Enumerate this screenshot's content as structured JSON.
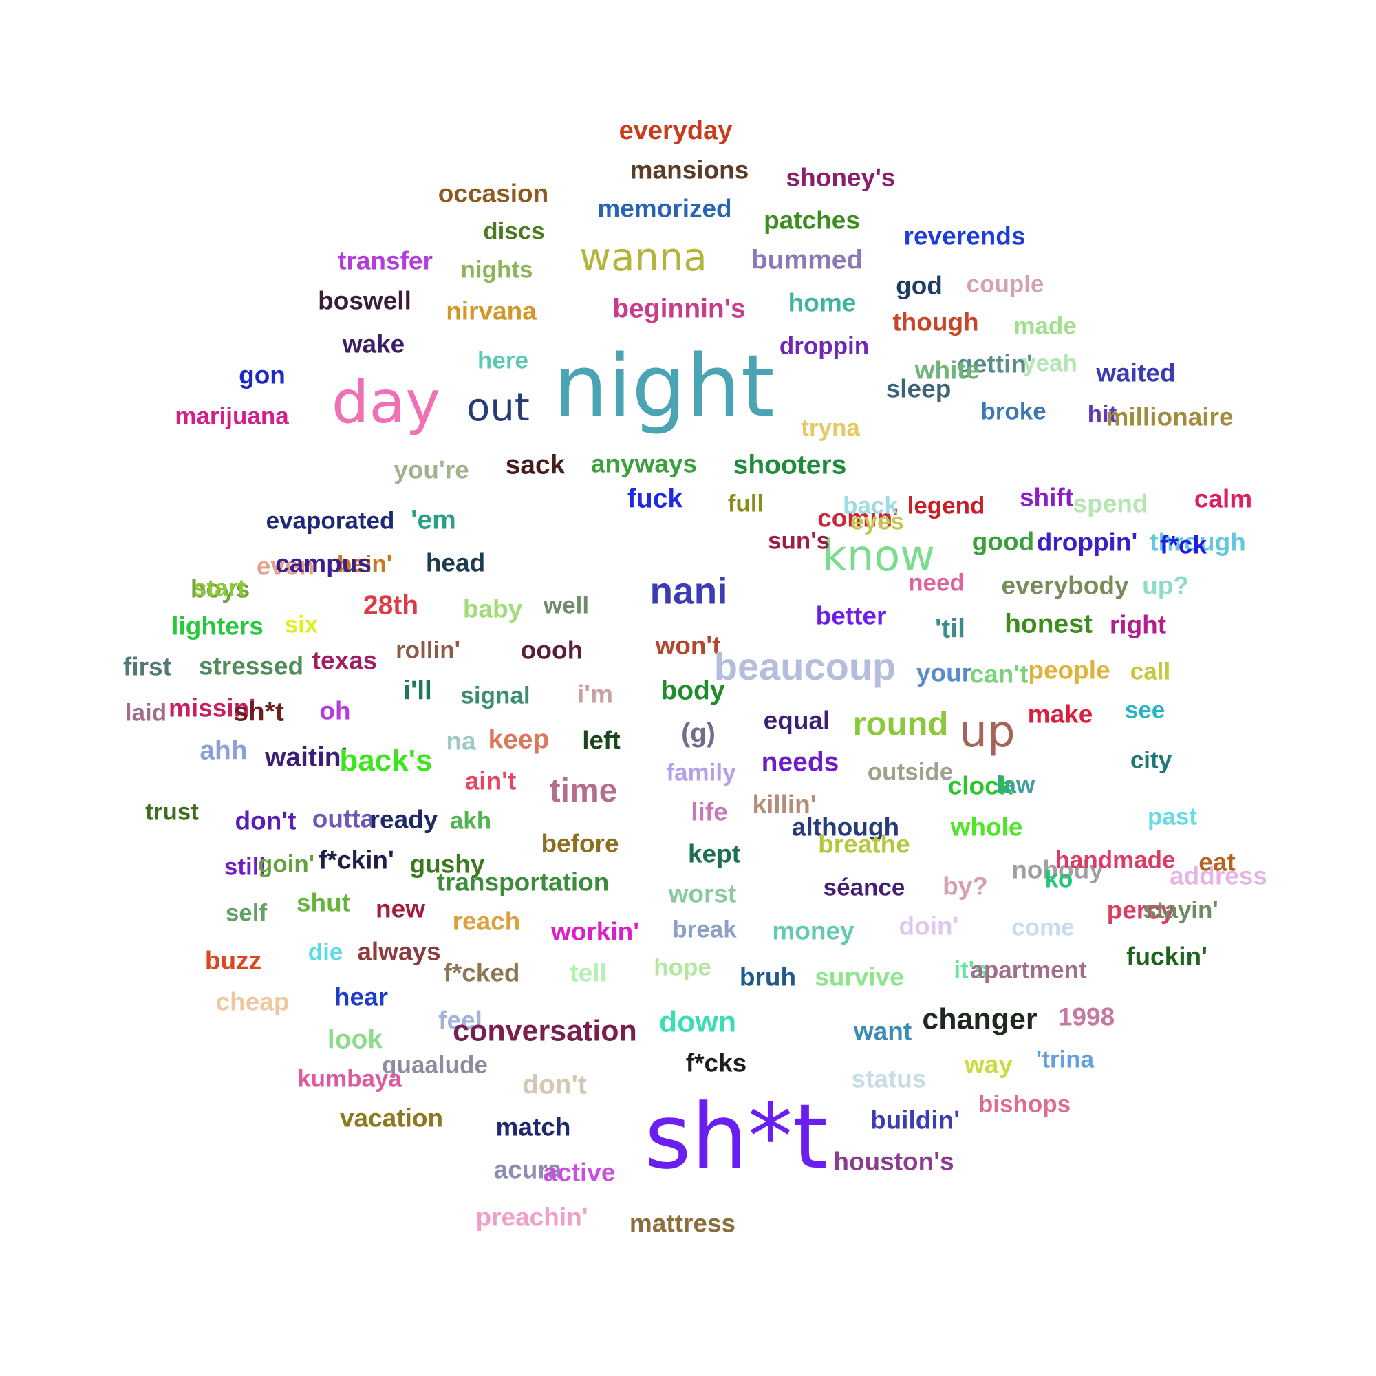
{
  "word_cloud": {
    "words": [
      {
        "text": "night",
        "color": "#4aa4b4"
      },
      {
        "text": "sh*t",
        "color": "#6a1ef0"
      },
      {
        "text": "day",
        "color": "#f070b4"
      },
      {
        "text": "wanna",
        "color": "#b4b43c"
      },
      {
        "text": "know",
        "color": "#7adc8c"
      },
      {
        "text": "out",
        "color": "#283c78"
      },
      {
        "text": "up",
        "color": "#a4645a"
      },
      {
        "text": "everyday",
        "color": "#c83c1e"
      },
      {
        "text": "mansions",
        "color": "#5a3c28"
      },
      {
        "text": "shoney's",
        "color": "#8c1e6e"
      },
      {
        "text": "occasion",
        "color": "#8c5a1e"
      },
      {
        "text": "memorized",
        "color": "#2864b4"
      },
      {
        "text": "patches",
        "color": "#3c8c1e"
      },
      {
        "text": "discs",
        "color": "#4a7a1e"
      },
      {
        "text": "reverends",
        "color": "#1e3cdc"
      },
      {
        "text": "transfer",
        "color": "#b43cdc"
      },
      {
        "text": "nights",
        "color": "#8cb45a"
      },
      {
        "text": "bummed",
        "color": "#8c78b4"
      },
      {
        "text": "god",
        "color": "#1e3c64"
      },
      {
        "text": "couple",
        "color": "#d4a0b4"
      },
      {
        "text": "boswell",
        "color": "#3c1e3c"
      },
      {
        "text": "nirvana",
        "color": "#d49628"
      },
      {
        "text": "beginnin's",
        "color": "#c83c8c"
      },
      {
        "text": "home",
        "color": "#3cb4a0"
      },
      {
        "text": "though",
        "color": "#c84628"
      },
      {
        "text": "made",
        "color": "#a0e08c"
      },
      {
        "text": "gettin'",
        "color": "#5a8c8c"
      },
      {
        "text": "wake",
        "color": "#3c1e64"
      },
      {
        "text": "droppin",
        "color": "#6e28b4"
      },
      {
        "text": "white",
        "color": "#6eb478"
      },
      {
        "text": "yeah",
        "color": "#b4e6b4"
      },
      {
        "text": "waited",
        "color": "#3c3cb4"
      },
      {
        "text": "gon",
        "color": "#1e28c8"
      },
      {
        "text": "here",
        "color": "#5ac8b4"
      },
      {
        "text": "sleep",
        "color": "#3c6478"
      },
      {
        "text": "broke",
        "color": "#3c78b4"
      },
      {
        "text": "hit",
        "color": "#5a3cb4"
      },
      {
        "text": "millionaire",
        "color": "#a08c3c"
      },
      {
        "text": "tryna",
        "color": "#e6c864"
      },
      {
        "text": "marijuana",
        "color": "#d41e8c"
      },
      {
        "text": "you're",
        "color": "#a0b48c"
      },
      {
        "text": "sack",
        "color": "#461e1e"
      },
      {
        "text": "anyways",
        "color": "#3ca03c"
      },
      {
        "text": "shooters",
        "color": "#1e8c3c"
      },
      {
        "text": "comin'",
        "color": "#c8283c"
      },
      {
        "text": "fuck",
        "color": "#1e28e6"
      },
      {
        "text": "back",
        "color": "#a0dce6"
      },
      {
        "text": "legend",
        "color": "#c81e28"
      },
      {
        "text": "shift",
        "color": "#8c1ec8"
      },
      {
        "text": "spend",
        "color": "#b4e6b4"
      },
      {
        "text": "calm",
        "color": "#dc1e64"
      },
      {
        "text": "evaporated",
        "color": "#1e2878"
      },
      {
        "text": "'em",
        "color": "#28a08c"
      },
      {
        "text": "full",
        "color": "#8c8c1e"
      },
      {
        "text": "eyes",
        "color": "#c8c850"
      },
      {
        "text": "sun's",
        "color": "#a01e46"
      },
      {
        "text": "good",
        "color": "#3ca03c"
      },
      {
        "text": "droppin'",
        "color": "#3c1ec8"
      },
      {
        "text": "through",
        "color": "#64c8dc"
      },
      {
        "text": "even",
        "color": "#e6a08c"
      },
      {
        "text": "bein'",
        "color": "#c8781e"
      },
      {
        "text": "head",
        "color": "#1e3c50"
      },
      {
        "text": "boys",
        "color": "#78a03c"
      },
      {
        "text": "campus",
        "color": "#3c1e8c"
      },
      {
        "text": "f*ck",
        "color": "#1e1ee6"
      },
      {
        "text": "nani",
        "color": "#3c3cb4"
      },
      {
        "text": "need",
        "color": "#dc64a0"
      },
      {
        "text": "everybody",
        "color": "#788c5a"
      },
      {
        "text": "up?",
        "color": "#8cdcc8"
      },
      {
        "text": "start",
        "color": "#8cc83c"
      },
      {
        "text": "lighters",
        "color": "#28c83c"
      },
      {
        "text": "six",
        "color": "#dcf01e"
      },
      {
        "text": "28th",
        "color": "#dc3c46"
      },
      {
        "text": "baby",
        "color": "#a0dc78"
      },
      {
        "text": "well",
        "color": "#6e8c6e"
      },
      {
        "text": "better",
        "color": "#6e1ee6"
      },
      {
        "text": "'til",
        "color": "#3c8c8c"
      },
      {
        "text": "honest",
        "color": "#3c8c1e"
      },
      {
        "text": "right",
        "color": "#b41e8c"
      },
      {
        "text": "first",
        "color": "#507878"
      },
      {
        "text": "stressed",
        "color": "#508c5a"
      },
      {
        "text": "texas",
        "color": "#a01e64"
      },
      {
        "text": "rollin'",
        "color": "#8c5a46"
      },
      {
        "text": "oooh",
        "color": "#5a1e3c"
      },
      {
        "text": "won't",
        "color": "#b4462d"
      },
      {
        "text": "beaucoup",
        "color": "#b4bedc"
      },
      {
        "text": "your",
        "color": "#5a8cc8"
      },
      {
        "text": "can't",
        "color": "#78d478"
      },
      {
        "text": "people",
        "color": "#dcb43c"
      },
      {
        "text": "call",
        "color": "#c8c83c"
      },
      {
        "text": "laid",
        "color": "#a06e8c"
      },
      {
        "text": "missin'",
        "color": "#c81e64"
      },
      {
        "text": "sh*t",
        "color": "#6e1e1e"
      },
      {
        "text": "oh",
        "color": "#b43cdc"
      },
      {
        "text": "i'll",
        "color": "#1e7850"
      },
      {
        "text": "signal",
        "color": "#3c8c6e"
      },
      {
        "text": "i'm",
        "color": "#c8a0a0"
      },
      {
        "text": "body",
        "color": "#1e8c28"
      },
      {
        "text": "equal",
        "color": "#3c1e78"
      },
      {
        "text": "round",
        "color": "#8cc83c"
      },
      {
        "text": "make",
        "color": "#dc1e3c"
      },
      {
        "text": "see",
        "color": "#28b4c8"
      },
      {
        "text": "ahh",
        "color": "#8ca0dc"
      },
      {
        "text": "waitin'",
        "color": "#3c1e78"
      },
      {
        "text": "back's",
        "color": "#3ce61e"
      },
      {
        "text": "na",
        "color": "#a0c8c8"
      },
      {
        "text": "keep",
        "color": "#dc785a"
      },
      {
        "text": "left",
        "color": "#1e461e"
      },
      {
        "text": "(g)",
        "color": "#6e6e8c"
      },
      {
        "text": "needs",
        "color": "#6e1ec8"
      },
      {
        "text": "city",
        "color": "#1e7878"
      },
      {
        "text": "family",
        "color": "#b4a0e6"
      },
      {
        "text": "outside",
        "color": "#a0a08c"
      },
      {
        "text": "clock",
        "color": "#28c828"
      },
      {
        "text": "law",
        "color": "#3ca0a0"
      },
      {
        "text": "ain't",
        "color": "#e64664"
      },
      {
        "text": "time",
        "color": "#b46e8c"
      },
      {
        "text": "trust",
        "color": "#3c6e1e"
      },
      {
        "text": "don't",
        "color": "#5a1eb4"
      },
      {
        "text": "outta",
        "color": "#6e5ab4"
      },
      {
        "text": "ready",
        "color": "#1e2864"
      },
      {
        "text": "akh",
        "color": "#50b450"
      },
      {
        "text": "life",
        "color": "#c878b4"
      },
      {
        "text": "killin'",
        "color": "#b48c78"
      },
      {
        "text": "although",
        "color": "#283c78"
      },
      {
        "text": "whole",
        "color": "#50e628"
      },
      {
        "text": "past",
        "color": "#64dce6"
      },
      {
        "text": "before",
        "color": "#8c6e1e"
      },
      {
        "text": "kept",
        "color": "#1e6e50"
      },
      {
        "text": "breathe",
        "color": "#b4c83c"
      },
      {
        "text": "nobody",
        "color": "#a0a0a0"
      },
      {
        "text": "handmade",
        "color": "#dc3c64"
      },
      {
        "text": "eat",
        "color": "#b4641e"
      },
      {
        "text": "still",
        "color": "#6e1ec8"
      },
      {
        "text": "goin'",
        "color": "#64a03c"
      },
      {
        "text": "f*ckin'",
        "color": "#1e1e46"
      },
      {
        "text": "gushy",
        "color": "#3c781e"
      },
      {
        "text": "transportation",
        "color": "#3c8c3c"
      },
      {
        "text": "worst",
        "color": "#8cc8a0"
      },
      {
        "text": "séance",
        "color": "#461e78"
      },
      {
        "text": "by?",
        "color": "#d4a0b4"
      },
      {
        "text": "ko",
        "color": "#1ec878"
      },
      {
        "text": "address",
        "color": "#e6b4e6"
      },
      {
        "text": "self",
        "color": "#64a064"
      },
      {
        "text": "shut",
        "color": "#64b43c"
      },
      {
        "text": "new",
        "color": "#a01e3c"
      },
      {
        "text": "reach",
        "color": "#dca03c"
      },
      {
        "text": "workin'",
        "color": "#dc1ec8"
      },
      {
        "text": "break",
        "color": "#8ca0c8"
      },
      {
        "text": "money",
        "color": "#64c8b4"
      },
      {
        "text": "doin'",
        "color": "#dcc8f0"
      },
      {
        "text": "come",
        "color": "#c8dcf0"
      },
      {
        "text": "percy",
        "color": "#dc3c64"
      },
      {
        "text": "stayin'",
        "color": "#6e8c64"
      },
      {
        "text": "buzz",
        "color": "#dc461e"
      },
      {
        "text": "die",
        "color": "#5adce6"
      },
      {
        "text": "always",
        "color": "#8c3c3c"
      },
      {
        "text": "f*cked",
        "color": "#8c7850"
      },
      {
        "text": "tell",
        "color": "#b4f0b4"
      },
      {
        "text": "hope",
        "color": "#b4e6a0"
      },
      {
        "text": "bruh",
        "color": "#1e5a8c"
      },
      {
        "text": "survive",
        "color": "#8ce68c"
      },
      {
        "text": "it's",
        "color": "#64e6a0"
      },
      {
        "text": "apartment",
        "color": "#a06e8c"
      },
      {
        "text": "fuckin'",
        "color": "#1e641e"
      },
      {
        "text": "cheap",
        "color": "#f0c8a0"
      },
      {
        "text": "hear",
        "color": "#1e3cc8"
      },
      {
        "text": "feel",
        "color": "#a0b4dc"
      },
      {
        "text": "conversation",
        "color": "#781e50"
      },
      {
        "text": "down",
        "color": "#3cdcb4"
      },
      {
        "text": "want",
        "color": "#3c8cb4"
      },
      {
        "text": "changer",
        "color": "#1e281e"
      },
      {
        "text": "1998",
        "color": "#c878a0"
      },
      {
        "text": "look",
        "color": "#8cdc8c"
      },
      {
        "text": "quaalude",
        "color": "#8c8ca0"
      },
      {
        "text": "f*cks",
        "color": "#1e1e1e"
      },
      {
        "text": "way",
        "color": "#c8dc3c"
      },
      {
        "text": "'trina",
        "color": "#64a0dc"
      },
      {
        "text": "kumbaya",
        "color": "#dc5aa0"
      },
      {
        "text": "don't",
        "color": "#d4c8b4"
      },
      {
        "text": "status",
        "color": "#c8dce6"
      },
      {
        "text": "bishops",
        "color": "#dc6e8c"
      },
      {
        "text": "vacation",
        "color": "#8c781e"
      },
      {
        "text": "match",
        "color": "#1e286e"
      },
      {
        "text": "buildin'",
        "color": "#3c3cb4"
      },
      {
        "text": "acura",
        "color": "#8c8cb4"
      },
      {
        "text": "active",
        "color": "#c850dc"
      },
      {
        "text": "houston's",
        "color": "#8c3c8c"
      },
      {
        "text": "preachin'",
        "color": "#f0a0c8"
      },
      {
        "text": "mattress",
        "color": "#8c6e3c"
      }
    ]
  }
}
